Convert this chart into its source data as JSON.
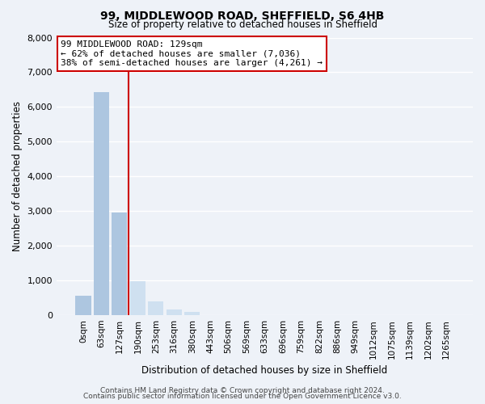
{
  "title_line1": "99, MIDDLEWOOD ROAD, SHEFFIELD, S6 4HB",
  "title_line2": "Size of property relative to detached houses in Sheffield",
  "xlabel": "Distribution of detached houses by size in Sheffield",
  "ylabel": "Number of detached properties",
  "bar_labels": [
    "0sqm",
    "63sqm",
    "127sqm",
    "190sqm",
    "253sqm",
    "316sqm",
    "380sqm",
    "443sqm",
    "506sqm",
    "569sqm",
    "633sqm",
    "696sqm",
    "759sqm",
    "822sqm",
    "886sqm",
    "949sqm",
    "1012sqm",
    "1075sqm",
    "1139sqm",
    "1202sqm",
    "1265sqm"
  ],
  "bar_heights": [
    560,
    6420,
    2950,
    990,
    390,
    175,
    90,
    0,
    0,
    0,
    0,
    0,
    0,
    0,
    0,
    0,
    0,
    0,
    0,
    0,
    0
  ],
  "bar_color_left": "#adc6e0",
  "bar_color_right": "#cfe0f0",
  "property_line_index": 2,
  "annotation_line1": "99 MIDDLEWOOD ROAD: 129sqm",
  "annotation_line2": "← 62% of detached houses are smaller (7,036)",
  "annotation_line3": "38% of semi-detached houses are larger (4,261) →",
  "annotation_box_color": "#ffffff",
  "annotation_box_edge": "#cc0000",
  "vline_color": "#cc0000",
  "ylim": [
    0,
    8000
  ],
  "yticks": [
    0,
    1000,
    2000,
    3000,
    4000,
    5000,
    6000,
    7000,
    8000
  ],
  "footer_line1": "Contains HM Land Registry data © Crown copyright and database right 2024.",
  "footer_line2": "Contains public sector information licensed under the Open Government Licence v3.0.",
  "bg_color": "#eef2f8",
  "plot_bg_color": "#eef2f8",
  "grid_color": "#ffffff"
}
